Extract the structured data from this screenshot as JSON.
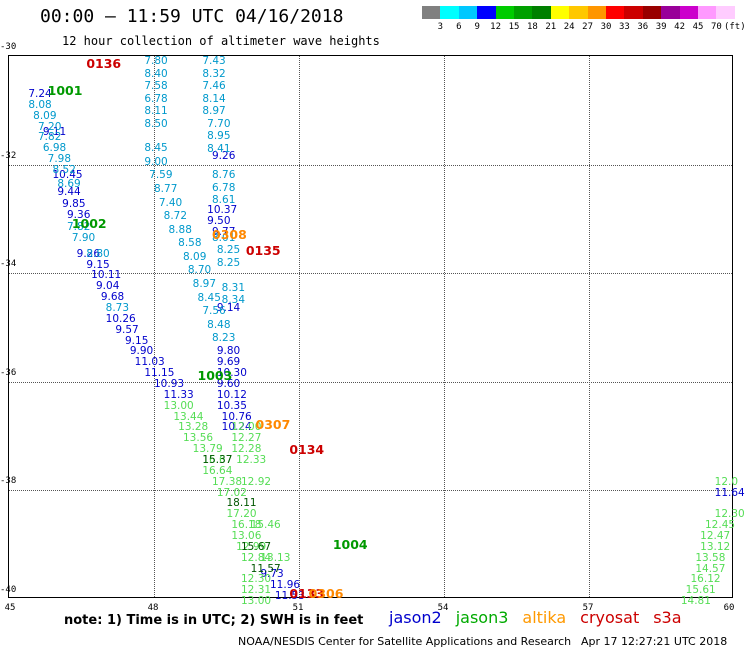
{
  "title": "00:00 – 11:59 UTC 04/16/2018",
  "subtitle": "12 hour collection of altimeter wave heights",
  "colorbar": {
    "colors": [
      "#808080",
      "#00ffff",
      "#00c8ff",
      "#0000ff",
      "#00cc00",
      "#00a000",
      "#008000",
      "#ffff00",
      "#ffc800",
      "#ff9600",
      "#ff0000",
      "#cc0000",
      "#990000",
      "#990099",
      "#cc00cc",
      "#ff99ff",
      "#ffccff"
    ],
    "ticks": [
      "3",
      "6",
      "9",
      "12",
      "15",
      "18",
      "21",
      "24",
      "27",
      "30",
      "33",
      "36",
      "39",
      "42",
      "45",
      "70",
      "(ft)"
    ]
  },
  "axes": {
    "y_labels": [
      "-30",
      "-32",
      "-34",
      "-36",
      "-38",
      "-40"
    ],
    "x_labels": [
      "45",
      "48",
      "51",
      "54",
      "57",
      "60"
    ]
  },
  "satellite_colors": {
    "jason2": "#0000cc",
    "jason3": "#009900",
    "altika": "#ff8800",
    "cryosat": "#cc0000",
    "s3a": "#cc0000"
  },
  "chart_data": {
    "type": "scatter",
    "x_range": [
      45,
      60
    ],
    "y_range": [
      -40,
      -30
    ],
    "units": "ft",
    "pass_labels": [
      {
        "label": "0136",
        "lon": 46.6,
        "lat": -30.15,
        "sat": "cryosat"
      },
      {
        "label": "1001",
        "lon": 45.8,
        "lat": -30.65,
        "sat": "jason3"
      },
      {
        "label": "1002",
        "lon": 46.3,
        "lat": -33.1,
        "sat": "jason3"
      },
      {
        "label": "0308",
        "lon": 49.2,
        "lat": -33.3,
        "sat": "altika"
      },
      {
        "label": "0135",
        "lon": 49.9,
        "lat": -33.6,
        "sat": "cryosat"
      },
      {
        "label": "1003",
        "lon": 48.9,
        "lat": -35.9,
        "sat": "jason3"
      },
      {
        "label": "0307",
        "lon": 50.1,
        "lat": -36.8,
        "sat": "altika"
      },
      {
        "label": "0134",
        "lon": 50.8,
        "lat": -37.25,
        "sat": "cryosat"
      },
      {
        "label": "1004",
        "lon": 51.7,
        "lat": -39.0,
        "sat": "jason3"
      },
      {
        "label": "0133",
        "lon": 50.8,
        "lat": -39.9,
        "sat": "cryosat"
      },
      {
        "label": "0306",
        "lon": 51.2,
        "lat": -39.9,
        "sat": "altika"
      }
    ],
    "tracks": [
      {
        "name": "jason2",
        "color": "#0000cc",
        "points": [
          {
            "lon": 45.4,
            "lat": -30.7,
            "v": "7.24"
          },
          {
            "lon": 45.7,
            "lat": -31.4,
            "v": "9.11"
          },
          {
            "lon": 45.9,
            "lat": -32.2,
            "v": "10.45"
          },
          {
            "lon": 46.0,
            "lat": -32.5,
            "v": "9.44"
          },
          {
            "lon": 46.1,
            "lat": -32.72,
            "v": "9.85"
          },
          {
            "lon": 46.2,
            "lat": -32.93,
            "v": "9.36"
          },
          {
            "lon": 46.4,
            "lat": -33.65,
            "v": "9.26"
          },
          {
            "lon": 46.6,
            "lat": -33.84,
            "v": "9.15"
          },
          {
            "lon": 46.7,
            "lat": -34.04,
            "v": "10.11"
          },
          {
            "lon": 46.8,
            "lat": -34.24,
            "v": "9.04"
          },
          {
            "lon": 46.9,
            "lat": -34.44,
            "v": "9.68"
          },
          {
            "lon": 47.0,
            "lat": -34.84,
            "v": "10.26"
          },
          {
            "lon": 47.2,
            "lat": -35.04,
            "v": "9.57"
          },
          {
            "lon": 47.4,
            "lat": -35.24,
            "v": "9.15"
          },
          {
            "lon": 47.5,
            "lat": -35.44,
            "v": "9.90"
          },
          {
            "lon": 47.6,
            "lat": -35.64,
            "v": "11.03"
          },
          {
            "lon": 47.8,
            "lat": -35.84,
            "v": "11.15"
          },
          {
            "lon": 48.0,
            "lat": -36.04,
            "v": "10.93"
          },
          {
            "lon": 48.2,
            "lat": -36.24,
            "v": "11.33"
          },
          {
            "lon": 49.2,
            "lat": -31.84,
            "v": "9.26"
          },
          {
            "lon": 49.1,
            "lat": -32.84,
            "v": "10.37"
          },
          {
            "lon": 49.1,
            "lat": -33.04,
            "v": "9.50"
          },
          {
            "lon": 49.2,
            "lat": -33.24,
            "v": "9.77"
          },
          {
            "lon": 49.3,
            "lat": -34.64,
            "v": "9.14"
          },
          {
            "lon": 49.3,
            "lat": -35.44,
            "v": "9.80"
          },
          {
            "lon": 49.3,
            "lat": -35.64,
            "v": "9.69"
          },
          {
            "lon": 49.3,
            "lat": -35.84,
            "v": "10.30"
          },
          {
            "lon": 49.3,
            "lat": -36.04,
            "v": "9.60"
          },
          {
            "lon": 49.3,
            "lat": -36.24,
            "v": "10.12"
          },
          {
            "lon": 49.3,
            "lat": -36.44,
            "v": "10.35"
          },
          {
            "lon": 49.4,
            "lat": -36.64,
            "v": "10.76"
          },
          {
            "lon": 49.4,
            "lat": -36.84,
            "v": "10.24"
          },
          {
            "lon": 50.2,
            "lat": -39.54,
            "v": "9.73"
          },
          {
            "lon": 50.4,
            "lat": -39.74,
            "v": "11.96"
          },
          {
            "lon": 50.5,
            "lat": -39.94,
            "v": "11.53"
          },
          {
            "lon": 59.6,
            "lat": -38.04,
            "v": "11.64"
          }
        ]
      },
      {
        "name": "jason2 (light)",
        "color": "#0099cc",
        "points": [
          {
            "lon": 47.8,
            "lat": -30.1,
            "v": "7.80"
          },
          {
            "lon": 47.8,
            "lat": -30.33,
            "v": "8.40"
          },
          {
            "lon": 47.8,
            "lat": -30.56,
            "v": "7.58"
          },
          {
            "lon": 47.8,
            "lat": -30.79,
            "v": "6.78"
          },
          {
            "lon": 47.8,
            "lat": -31.02,
            "v": "8.11"
          },
          {
            "lon": 47.8,
            "lat": -31.25,
            "v": "8.50"
          },
          {
            "lon": 47.8,
            "lat": -31.7,
            "v": "8.45"
          },
          {
            "lon": 47.8,
            "lat": -31.95,
            "v": "9.00"
          },
          {
            "lon": 47.9,
            "lat": -32.2,
            "v": "7.59"
          },
          {
            "lon": 48.0,
            "lat": -32.45,
            "v": "8.77"
          },
          {
            "lon": 48.1,
            "lat": -32.7,
            "v": "7.40"
          },
          {
            "lon": 48.2,
            "lat": -32.95,
            "v": "8.72"
          },
          {
            "lon": 48.3,
            "lat": -33.2,
            "v": "8.88"
          },
          {
            "lon": 48.5,
            "lat": -33.45,
            "v": "8.58"
          },
          {
            "lon": 48.6,
            "lat": -33.7,
            "v": "8.09"
          },
          {
            "lon": 48.7,
            "lat": -33.95,
            "v": "8.70"
          },
          {
            "lon": 48.8,
            "lat": -34.2,
            "v": "8.97"
          },
          {
            "lon": 48.9,
            "lat": -34.45,
            "v": "8.45"
          },
          {
            "lon": 49.0,
            "lat": -34.7,
            "v": "7.56"
          },
          {
            "lon": 49.1,
            "lat": -34.95,
            "v": "8.48"
          },
          {
            "lon": 49.2,
            "lat": -35.2,
            "v": "8.23"
          },
          {
            "lon": 49.0,
            "lat": -30.1,
            "v": "7.43"
          },
          {
            "lon": 49.0,
            "lat": -30.33,
            "v": "8.32"
          },
          {
            "lon": 49.0,
            "lat": -30.56,
            "v": "7.46"
          },
          {
            "lon": 49.0,
            "lat": -30.79,
            "v": "8.14"
          },
          {
            "lon": 49.0,
            "lat": -31.02,
            "v": "8.97"
          },
          {
            "lon": 49.1,
            "lat": -31.25,
            "v": "7.70"
          },
          {
            "lon": 49.1,
            "lat": -31.48,
            "v": "8.95"
          },
          {
            "lon": 49.1,
            "lat": -31.71,
            "v": "8.41"
          },
          {
            "lon": 49.2,
            "lat": -32.2,
            "v": "8.76"
          },
          {
            "lon": 49.2,
            "lat": -32.43,
            "v": "6.78"
          },
          {
            "lon": 49.2,
            "lat": -32.66,
            "v": "8.61"
          },
          {
            "lon": 49.2,
            "lat": -33.35,
            "v": "8.01"
          },
          {
            "lon": 49.3,
            "lat": -33.58,
            "v": "8.25"
          },
          {
            "lon": 49.3,
            "lat": -33.81,
            "v": "8.25"
          },
          {
            "lon": 49.4,
            "lat": -34.27,
            "v": "8.31"
          },
          {
            "lon": 49.4,
            "lat": -34.5,
            "v": "8.34"
          },
          {
            "lon": 45.4,
            "lat": -30.9,
            "v": "8.08"
          },
          {
            "lon": 45.5,
            "lat": -31.1,
            "v": "8.09"
          },
          {
            "lon": 45.6,
            "lat": -31.3,
            "v": "7.20"
          },
          {
            "lon": 45.6,
            "lat": -31.5,
            "v": "7.82"
          },
          {
            "lon": 45.7,
            "lat": -31.7,
            "v": "6.98"
          },
          {
            "lon": 45.8,
            "lat": -31.9,
            "v": "7.98"
          },
          {
            "lon": 45.9,
            "lat": -32.1,
            "v": "8.52"
          },
          {
            "lon": 46.0,
            "lat": -32.35,
            "v": "8.69"
          },
          {
            "lon": 46.2,
            "lat": -33.15,
            "v": "7.82"
          },
          {
            "lon": 46.3,
            "lat": -33.35,
            "v": "7.90"
          },
          {
            "lon": 46.6,
            "lat": -33.65,
            "v": "8.80"
          },
          {
            "lon": 47.0,
            "lat": -34.64,
            "v": "8.73"
          }
        ]
      },
      {
        "name": "jason3",
        "color": "#55dd55",
        "points": [
          {
            "lon": 48.2,
            "lat": -36.44,
            "v": "13.00"
          },
          {
            "lon": 48.4,
            "lat": -36.64,
            "v": "13.44"
          },
          {
            "lon": 48.5,
            "lat": -36.84,
            "v": "13.28"
          },
          {
            "lon": 48.6,
            "lat": -37.04,
            "v": "13.56"
          },
          {
            "lon": 48.8,
            "lat": -37.24,
            "v": "13.79"
          },
          {
            "lon": 49.0,
            "lat": -37.44,
            "v": "16.67"
          },
          {
            "lon": 49.0,
            "lat": -37.64,
            "v": "16.64"
          },
          {
            "lon": 49.2,
            "lat": -37.84,
            "v": "17.38"
          },
          {
            "lon": 49.3,
            "lat": -38.04,
            "v": "17.02"
          },
          {
            "lon": 49.5,
            "lat": -38.44,
            "v": "17.20"
          },
          {
            "lon": 49.6,
            "lat": -38.64,
            "v": "16.18"
          },
          {
            "lon": 49.6,
            "lat": -38.84,
            "v": "13.06"
          },
          {
            "lon": 49.7,
            "lat": -39.04,
            "v": "12.99"
          },
          {
            "lon": 49.8,
            "lat": -39.24,
            "v": "12.84"
          },
          {
            "lon": 49.8,
            "lat": -39.64,
            "v": "12.30"
          },
          {
            "lon": 49.8,
            "lat": -39.84,
            "v": "12.31"
          },
          {
            "lon": 49.8,
            "lat": -40.04,
            "v": "13.00"
          },
          {
            "lon": 49.6,
            "lat": -36.84,
            "v": "12.00"
          },
          {
            "lon": 49.6,
            "lat": -37.04,
            "v": "12.27"
          },
          {
            "lon": 49.6,
            "lat": -37.24,
            "v": "12.28"
          },
          {
            "lon": 49.7,
            "lat": -37.44,
            "v": "12.33"
          },
          {
            "lon": 49.8,
            "lat": -37.84,
            "v": "12.92"
          },
          {
            "lon": 50.0,
            "lat": -38.64,
            "v": "15.46"
          },
          {
            "lon": 50.2,
            "lat": -39.24,
            "v": "13.13"
          },
          {
            "lon": 59.6,
            "lat": -37.84,
            "v": "12.0"
          },
          {
            "lon": 59.6,
            "lat": -38.44,
            "v": "12.30"
          },
          {
            "lon": 59.4,
            "lat": -38.64,
            "v": "12.45"
          },
          {
            "lon": 59.3,
            "lat": -38.84,
            "v": "12.47"
          },
          {
            "lon": 59.3,
            "lat": -39.04,
            "v": "13.12"
          },
          {
            "lon": 59.2,
            "lat": -39.24,
            "v": "13.58"
          },
          {
            "lon": 59.2,
            "lat": -39.44,
            "v": "14.57"
          },
          {
            "lon": 59.1,
            "lat": -39.64,
            "v": "16.12"
          },
          {
            "lon": 59.0,
            "lat": -39.84,
            "v": "15.61"
          },
          {
            "lon": 58.9,
            "lat": -40.04,
            "v": "14.81"
          }
        ]
      },
      {
        "name": "jason3 (dark)",
        "color": "#005500",
        "points": [
          {
            "lon": 49.0,
            "lat": -37.44,
            "v": "15.37"
          },
          {
            "lon": 49.5,
            "lat": -38.24,
            "v": "18.11"
          },
          {
            "lon": 49.8,
            "lat": -39.04,
            "v": "15.67"
          },
          {
            "lon": 50.0,
            "lat": -39.44,
            "v": "11.57"
          }
        ]
      }
    ]
  },
  "note": "note: 1) Time is in UTC; 2) SWH is in feet",
  "legend": [
    {
      "name": "jason2",
      "color": "#0000cc"
    },
    {
      "name": "jason3",
      "color": "#00aa00"
    },
    {
      "name": "altika",
      "color": "#ff9900"
    },
    {
      "name": "cryosat",
      "color": "#cc0000"
    },
    {
      "name": "s3a",
      "color": "#cc0000"
    }
  ],
  "credit": "NOAA/NESDIS Center for Satellite Applications and Research",
  "timestamp": "Apr 17 12:27:21 UTC 2018"
}
